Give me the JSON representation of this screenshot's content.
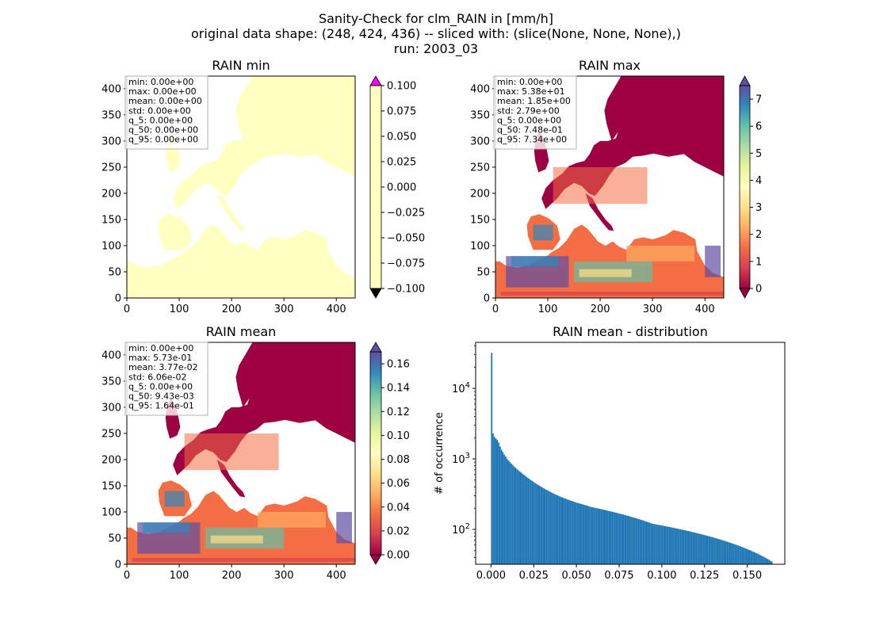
{
  "figure": {
    "title_lines": [
      "Sanity-Check for clm_RAIN in [mm/h]",
      "original data shape: (248, 424, 436) -- sliced with: (slice(None, None, None),)",
      "run: 2003_03"
    ]
  },
  "colors": {
    "land_min": "#ffffbf",
    "cmap": [
      "#9e0142",
      "#d53e4f",
      "#f46d43",
      "#fdae61",
      "#fee08b",
      "#ffffbf",
      "#e6f598",
      "#abdda4",
      "#66c2a5",
      "#3288bd",
      "#5e4fa2"
    ],
    "over_min": "#ff00ff",
    "under_min": "#000000",
    "hist_bar": "#1f77b4"
  },
  "chart_data": [
    {
      "type": "heatmap",
      "title": "RAIN min",
      "xlim": [
        0,
        436
      ],
      "ylim": [
        0,
        424
      ],
      "xticks": [
        "0",
        "100",
        "200",
        "300",
        "400"
      ],
      "yticks": [
        "0",
        "50",
        "100",
        "150",
        "200",
        "250",
        "300",
        "350",
        "400"
      ],
      "stats": [
        "min: 0.00e+00",
        "max: 0.00e+00",
        "mean: 0.00e+00",
        "std: 0.00e+00",
        "q_5: 0.00e+00",
        "q_50: 0.00e+00",
        "q_95: 0.00e+00"
      ],
      "colorbar": {
        "range": [
          -0.1,
          0.1
        ],
        "ticks": [
          "0.100",
          "0.075",
          "0.050",
          "0.025",
          "0.000",
          "−0.025",
          "−0.050",
          "−0.075",
          "−0.100"
        ],
        "extend": "both"
      }
    },
    {
      "type": "heatmap",
      "title": "RAIN max",
      "xlim": [
        0,
        436
      ],
      "ylim": [
        0,
        424
      ],
      "xticks": [
        "0",
        "100",
        "200",
        "300",
        "400"
      ],
      "yticks": [
        "0",
        "50",
        "100",
        "150",
        "200",
        "250",
        "300",
        "350",
        "400"
      ],
      "stats": [
        "min: 0.00e+00",
        "max: 5.38e+01",
        "mean: 1.85e+00",
        "std: 2.79e+00",
        "q_5: 0.00e+00",
        "q_50: 7.48e-01",
        "q_95: 7.34e+00"
      ],
      "colorbar": {
        "range": [
          0,
          7.5
        ],
        "ticks": [
          "7",
          "6",
          "5",
          "4",
          "3",
          "2",
          "1",
          "0"
        ],
        "extend": "both"
      }
    },
    {
      "type": "heatmap",
      "title": "RAIN mean",
      "xlim": [
        0,
        436
      ],
      "ylim": [
        0,
        424
      ],
      "xticks": [
        "0",
        "100",
        "200",
        "300",
        "400"
      ],
      "yticks": [
        "0",
        "50",
        "100",
        "150",
        "200",
        "250",
        "300",
        "350",
        "400"
      ],
      "stats": [
        "min: 0.00e+00",
        "max: 5.73e-01",
        "mean: 3.77e-02",
        "std: 6.06e-02",
        "q_5: 0.00e+00",
        "q_50: 9.43e-03",
        "q_95: 1.64e-01"
      ],
      "colorbar": {
        "range": [
          0,
          0.17
        ],
        "ticks": [
          "0.16",
          "0.14",
          "0.12",
          "0.10",
          "0.08",
          "0.06",
          "0.04",
          "0.02",
          "0.00"
        ],
        "extend": "both"
      }
    },
    {
      "type": "bar",
      "title": "RAIN mean - distribution",
      "ylabel": "# of occurrence",
      "xlim": [
        -0.009,
        0.172
      ],
      "ylog": true,
      "ylim": [
        32,
        45000
      ],
      "xticks": [
        "0.000",
        "0.025",
        "0.050",
        "0.075",
        "0.100",
        "0.125",
        "0.150"
      ],
      "yticks": [
        "10^2",
        "10^3",
        "10^4"
      ],
      "bin_width": 0.00082,
      "x_start": 0.0,
      "values": [
        32000,
        2300,
        2050,
        1950,
        1850,
        1700,
        1500,
        1350,
        1250,
        1150,
        1080,
        1000,
        950,
        900,
        860,
        820,
        780,
        750,
        720,
        690,
        665,
        640,
        615,
        595,
        575,
        555,
        535,
        518,
        500,
        485,
        470,
        455,
        442,
        430,
        418,
        406,
        395,
        385,
        375,
        365,
        356,
        347,
        339,
        331,
        324,
        317,
        310,
        304,
        298,
        292,
        286,
        281,
        276,
        271,
        266,
        262,
        258,
        254,
        250,
        246,
        242,
        238,
        235,
        232,
        229,
        226,
        223,
        220,
        217,
        214,
        211,
        208,
        206,
        204,
        202,
        200,
        198,
        196,
        194,
        192,
        190,
        188,
        186,
        184,
        182,
        180,
        178,
        176,
        174,
        172,
        170,
        168,
        166,
        164,
        162,
        160,
        158,
        156,
        154,
        152,
        150,
        148,
        146,
        144,
        142,
        140,
        138,
        136,
        134,
        132,
        130,
        128,
        126,
        124,
        122,
        120,
        119,
        118,
        117,
        116,
        115,
        114,
        113,
        112,
        111,
        110,
        109,
        108,
        107,
        106,
        105,
        104,
        103,
        102,
        101,
        100,
        99,
        98,
        97,
        96,
        95,
        94,
        93,
        92,
        91,
        90,
        89,
        88,
        87,
        86,
        85,
        84,
        83,
        82,
        81,
        80,
        79,
        78,
        77,
        76,
        75,
        74,
        73,
        72,
        71,
        70,
        69,
        68,
        67,
        66,
        65,
        64,
        63,
        62,
        61,
        60,
        59,
        58,
        57,
        56,
        55,
        54,
        53,
        52,
        51,
        50,
        49,
        48,
        47,
        46,
        45,
        44,
        43,
        42,
        41,
        40,
        39,
        38,
        37,
        36,
        35
      ]
    }
  ]
}
